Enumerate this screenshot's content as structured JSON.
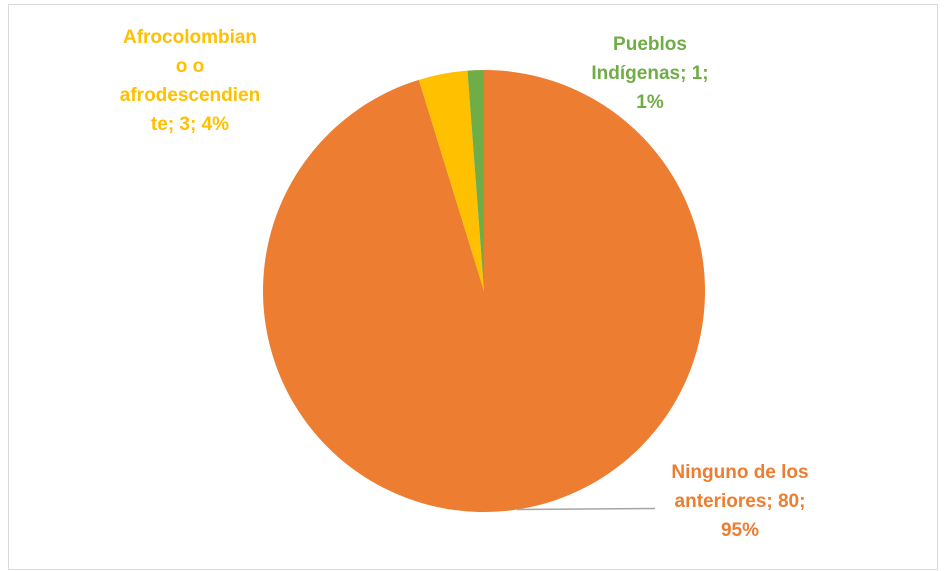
{
  "chart_data": {
    "type": "pie",
    "title": "",
    "start_angle_deg": 0,
    "direction": "clockwise",
    "slices": [
      {
        "key": "ninguno",
        "category": "Ninguno de los anteriores",
        "value": 80,
        "percent_label": "95%",
        "color": "#ED7D31",
        "label_lines": [
          "Ninguno de los",
          "anteriores; 80;",
          "95%"
        ]
      },
      {
        "key": "afro",
        "category": "Afrocolombiano o afrodescendiente",
        "value": 3,
        "percent_label": "4%",
        "color": "#FFC000",
        "label_lines": [
          "Afrocolombian",
          "o o",
          "afrodescendien",
          "te; 3; 4%"
        ]
      },
      {
        "key": "indigenas",
        "category": "Pueblos Indígenas",
        "value": 1,
        "percent_label": "1%",
        "color": "#70AD47",
        "label_lines": [
          "Pueblos",
          "Indígenas; 1;",
          "1%"
        ]
      }
    ],
    "legend": "none",
    "leader_line_color": "#A5A5A5"
  }
}
